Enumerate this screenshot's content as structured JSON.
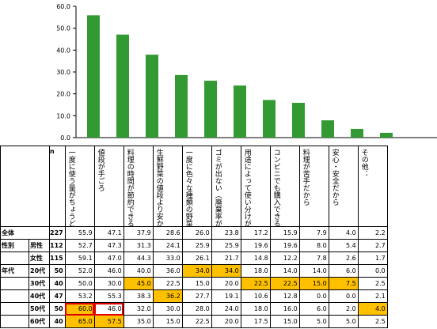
{
  "chart_data": {
    "type": "bar",
    "categories": [
      "一度に使う量がちょうどいい（使い切れる）",
      "値段が手ごろ",
      "料理の時間が節約できる",
      "生鮮野菜の値段より安かった",
      "一度に色々な種類の野菜が手軽に摂れる",
      "ゴミが出ない（廃棄率が低い）",
      "用途によって使い分けができる",
      "コンビニでも購入できる",
      "料理が苦手だから",
      "安心・安全だから",
      "その他："
    ],
    "values": [
      55.9,
      47.1,
      37.9,
      28.6,
      26.0,
      23.8,
      17.2,
      15.9,
      7.9,
      4.0,
      2.2
    ],
    "ylim": [
      0,
      60
    ],
    "yticks": [
      "0.0",
      "10.0",
      "20.0",
      "30.0",
      "40.0",
      "50.0",
      "60.0"
    ],
    "bar_color": "#339933",
    "grid": false
  },
  "table": {
    "n_header": "n",
    "rows": [
      {
        "group": "全体",
        "label": "",
        "n": "227",
        "values": [
          "55.9",
          "47.1",
          "37.9",
          "28.6",
          "26.0",
          "23.8",
          "17.2",
          "15.9",
          "7.9",
          "4.0",
          "2.2"
        ],
        "highlight": [],
        "boxed": []
      },
      {
        "group": "性別",
        "label": "男性",
        "n": "112",
        "values": [
          "52.7",
          "47.3",
          "31.3",
          "24.1",
          "25.9",
          "25.9",
          "19.6",
          "19.6",
          "8.0",
          "5.4",
          "2.7"
        ],
        "highlight": [],
        "boxed": []
      },
      {
        "group": "",
        "label": "女性",
        "n": "115",
        "values": [
          "59.1",
          "47.0",
          "44.3",
          "33.0",
          "26.1",
          "21.7",
          "14.8",
          "12.2",
          "7.8",
          "2.6",
          "1.7"
        ],
        "highlight": [],
        "boxed": []
      },
      {
        "group": "年代",
        "label": "20代",
        "n": "50",
        "values": [
          "52.0",
          "46.0",
          "40.0",
          "36.0",
          "34.0",
          "34.0",
          "18.0",
          "14.0",
          "14.0",
          "6.0",
          "0.0"
        ],
        "highlight": [
          4,
          5
        ],
        "boxed": []
      },
      {
        "group": "",
        "label": "30代",
        "n": "40",
        "values": [
          "50.0",
          "30.0",
          "45.0",
          "22.5",
          "15.0",
          "20.0",
          "22.5",
          "22.5",
          "15.0",
          "7.5",
          "2.5"
        ],
        "highlight": [
          2,
          6,
          7,
          8,
          9
        ],
        "boxed": []
      },
      {
        "group": "",
        "label": "40代",
        "n": "47",
        "values": [
          "53.2",
          "55.3",
          "38.3",
          "36.2",
          "27.7",
          "19.1",
          "10.6",
          "12.8",
          "0.0",
          "0.0",
          "2.1"
        ],
        "highlight": [
          3
        ],
        "boxed": []
      },
      {
        "group": "",
        "label": "50代",
        "n": "50",
        "values": [
          "60.0",
          "46.0",
          "32.0",
          "30.0",
          "28.0",
          "24.0",
          "18.0",
          "16.0",
          "6.0",
          "2.0",
          "4.0"
        ],
        "highlight": [
          0,
          10
        ],
        "boxed": [
          0,
          1
        ]
      },
      {
        "group": "",
        "label": "60代",
        "n": "40",
        "values": [
          "65.0",
          "57.5",
          "35.0",
          "15.0",
          "22.5",
          "20.0",
          "17.5",
          "15.0",
          "5.0",
          "5.0",
          "2.5"
        ],
        "highlight": [
          0,
          1
        ],
        "boxed": []
      }
    ]
  }
}
